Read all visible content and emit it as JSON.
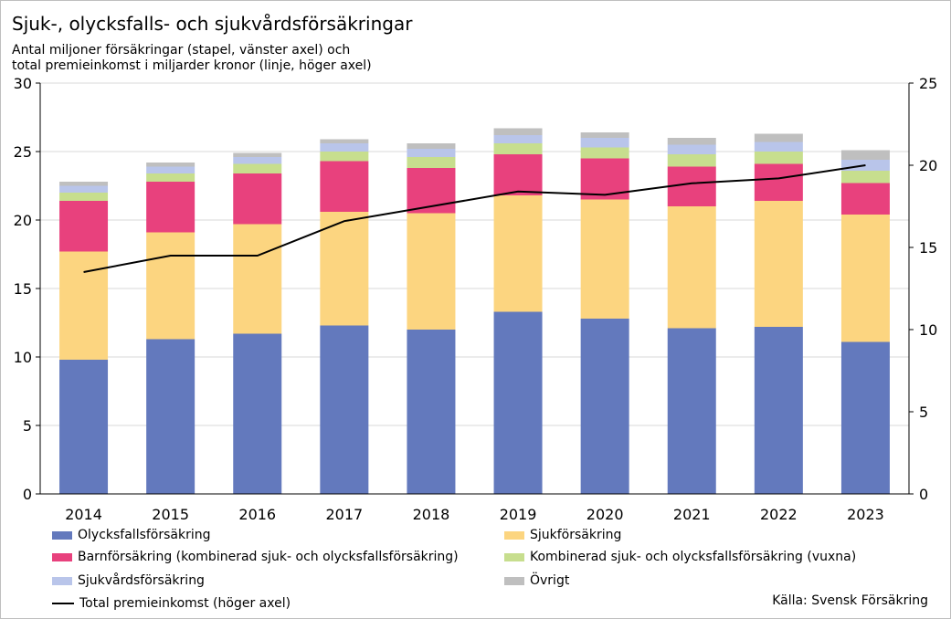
{
  "title": "Sjuk-, olycksfalls- och sjukvårdsförsäkringar",
  "subtitle_line1": "Antal miljoner försäkringar (stapel, vänster axel) och",
  "subtitle_line2": "total premieinkomst i miljarder kronor (linje, höger axel)",
  "source": "Källa: Svensk Försäkring",
  "chart_data": {
    "type": "bar",
    "stacked": true,
    "categories": [
      "2014",
      "2015",
      "2016",
      "2017",
      "2018",
      "2019",
      "2020",
      "2021",
      "2022",
      "2023"
    ],
    "series": [
      {
        "name": "Olycksfallsförsäkring",
        "color": "#6379bd",
        "values": [
          9.8,
          11.3,
          11.7,
          12.3,
          12.0,
          13.3,
          12.8,
          12.1,
          12.2,
          11.1
        ]
      },
      {
        "name": "Sjukförsäkring",
        "color": "#fcd580",
        "values": [
          7.9,
          7.8,
          8.0,
          8.3,
          8.5,
          8.5,
          8.7,
          8.9,
          9.2,
          9.3
        ]
      },
      {
        "name": "Barnförsäkring (kombinerad sjuk- och olycksfallsförsäkring)",
        "color": "#e8417d",
        "values": [
          3.7,
          3.7,
          3.7,
          3.7,
          3.3,
          3.0,
          3.0,
          2.9,
          2.7,
          2.3
        ]
      },
      {
        "name": "Kombinerad sjuk- och olycksfallsförsäkring (vuxna)",
        "color": "#c7de8e",
        "values": [
          0.6,
          0.6,
          0.7,
          0.7,
          0.8,
          0.8,
          0.8,
          0.9,
          0.9,
          0.9
        ]
      },
      {
        "name": "Sjukvårdsförsäkring",
        "color": "#b9c5ea",
        "values": [
          0.5,
          0.5,
          0.5,
          0.6,
          0.6,
          0.6,
          0.7,
          0.7,
          0.7,
          0.8
        ]
      },
      {
        "name": "Övrigt",
        "color": "#bfbfbf",
        "values": [
          0.3,
          0.3,
          0.3,
          0.3,
          0.4,
          0.5,
          0.4,
          0.5,
          0.6,
          0.7
        ]
      }
    ],
    "line_series": {
      "name": "Total premieinkomst (höger axel)",
      "color": "#000000",
      "axis": "right",
      "values": [
        13.5,
        14.5,
        14.5,
        16.6,
        17.5,
        18.4,
        18.2,
        18.9,
        19.2,
        20.0
      ]
    },
    "y_left": {
      "min": 0,
      "max": 30,
      "ticks": [
        0,
        5,
        10,
        15,
        20,
        25,
        30
      ]
    },
    "y_right": {
      "min": 0,
      "max": 25,
      "ticks": [
        0,
        5,
        10,
        15,
        20,
        25
      ]
    },
    "grid": "horizontal",
    "legend_position": "bottom"
  }
}
